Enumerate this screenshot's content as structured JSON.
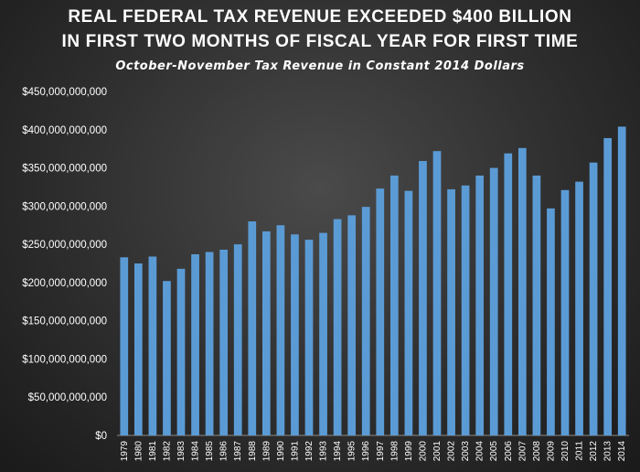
{
  "chart_data": {
    "type": "bar",
    "title_line1": "REAL FEDERAL TAX REVENUE EXCEEDED $400 BILLION",
    "title_line2": "IN FIRST TWO MONTHS OF FISCAL YEAR FOR FIRST TIME",
    "subtitle": "October-November  Tax Revenue  in Constant  2014 Dollars",
    "xlabel": "",
    "ylabel": "",
    "ylim": [
      0,
      450000000000
    ],
    "y_ticks": [
      0,
      50000000000,
      100000000000,
      150000000000,
      200000000000,
      250000000000,
      300000000000,
      350000000000,
      400000000000,
      450000000000
    ],
    "y_tick_labels": [
      "$0",
      "$50,000,000,000",
      "$100,000,000,000",
      "$150,000,000,000",
      "$200,000,000,000",
      "$250,000,000,000",
      "$300,000,000,000",
      "$350,000,000,000",
      "$400,000,000,000",
      "$450,000,000,000"
    ],
    "grid": false,
    "bar_color": "#5b9bd5",
    "categories": [
      "1979",
      "1980",
      "1981",
      "1982",
      "1983",
      "1984",
      "1985",
      "1986",
      "1987",
      "1988",
      "1989",
      "1990",
      "1991",
      "1992",
      "1993",
      "1994",
      "1995",
      "1996",
      "1997",
      "1998",
      "1999",
      "2000",
      "2001",
      "2002",
      "2003",
      "2004",
      "2005",
      "2006",
      "2007",
      "2008",
      "2009",
      "2010",
      "2011",
      "2012",
      "2013",
      "2014"
    ],
    "values": [
      233000000000,
      225000000000,
      234000000000,
      202000000000,
      218000000000,
      237000000000,
      240000000000,
      243000000000,
      250000000000,
      280000000000,
      267000000000,
      275000000000,
      263000000000,
      256000000000,
      265000000000,
      283000000000,
      288000000000,
      299000000000,
      323000000000,
      340000000000,
      320000000000,
      359000000000,
      372000000000,
      322000000000,
      327000000000,
      340000000000,
      350000000000,
      369000000000,
      376000000000,
      340000000000,
      297000000000,
      321000000000,
      332000000000,
      357000000000,
      389000000000,
      404000000000
    ]
  }
}
